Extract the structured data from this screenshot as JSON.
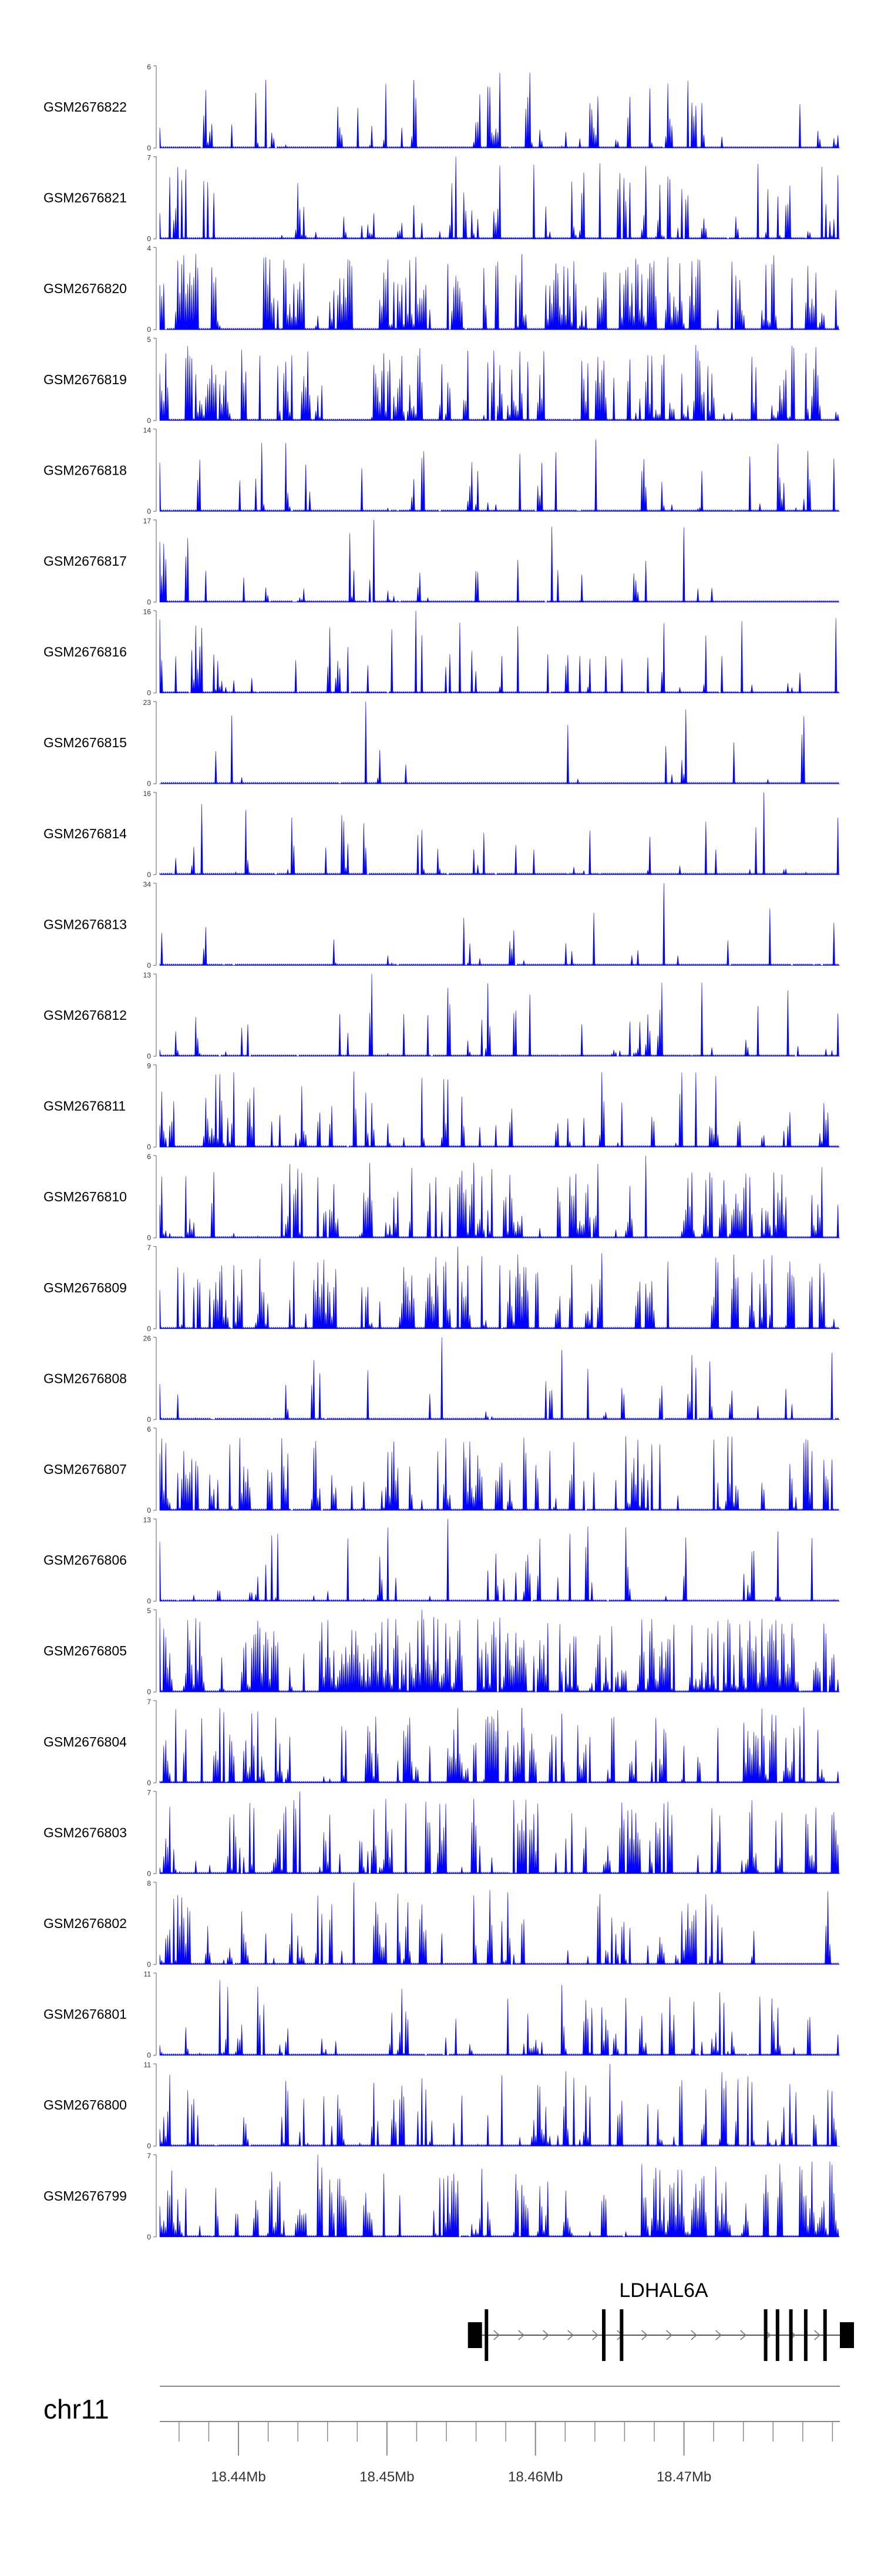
{
  "chart_data": {
    "type": "area",
    "title": "",
    "chromosome": "chr11",
    "xlim": [
      18.4347,
      18.4805
    ],
    "x_unit": "Mb",
    "x_ticks": [
      18.44,
      18.45,
      18.46,
      18.47
    ],
    "x_tick_labels": [
      "18.44Mb",
      "18.45Mb",
      "18.46Mb",
      "18.47Mb"
    ],
    "fill_color": "#0000ff",
    "gene": {
      "name": "LDHAL6A",
      "strand": "+",
      "start": 18.4564,
      "end": 18.4805,
      "exon_positions": [
        18.4567,
        18.4646,
        18.4658,
        18.4755,
        18.4763,
        18.4772,
        18.4782,
        18.4795
      ]
    },
    "tracks": [
      {
        "label": "GSM2676822",
        "ymax": 6,
        "ymax_label": "6",
        "ymin_label": "0",
        "seed": 101,
        "density": 0.62,
        "skew": 1.6
      },
      {
        "label": "GSM2676821",
        "ymax": 7,
        "ymax_label": "7",
        "ymin_label": "0",
        "seed": 102,
        "density": 0.6,
        "skew": 1.7
      },
      {
        "label": "GSM2676820",
        "ymax": 4,
        "ymax_label": "4",
        "ymin_label": "0",
        "seed": 103,
        "density": 0.88,
        "skew": 1.1
      },
      {
        "label": "GSM2676819",
        "ymax": 5,
        "ymax_label": "5",
        "ymin_label": "0",
        "seed": 104,
        "density": 0.8,
        "skew": 1.4
      },
      {
        "label": "GSM2676818",
        "ymax": 14,
        "ymax_label": "14",
        "ymin_label": "0",
        "seed": 105,
        "density": 0.5,
        "skew": 2.0
      },
      {
        "label": "GSM2676817",
        "ymax": 17,
        "ymax_label": "17",
        "ymin_label": "0",
        "seed": 106,
        "density": 0.42,
        "skew": 2.0
      },
      {
        "label": "GSM2676816",
        "ymax": 16,
        "ymax_label": "16",
        "ymin_label": "0",
        "seed": 107,
        "density": 0.52,
        "skew": 1.8
      },
      {
        "label": "GSM2676815",
        "ymax": 23,
        "ymax_label": "23",
        "ymin_label": "0",
        "seed": 108,
        "density": 0.3,
        "skew": 2.2
      },
      {
        "label": "GSM2676814",
        "ymax": 16,
        "ymax_label": "16",
        "ymin_label": "0",
        "seed": 109,
        "density": 0.42,
        "skew": 2.2
      },
      {
        "label": "GSM2676813",
        "ymax": 34,
        "ymax_label": "34",
        "ymin_label": "0",
        "seed": 110,
        "density": 0.28,
        "skew": 2.8
      },
      {
        "label": "GSM2676812",
        "ymax": 13,
        "ymax_label": "13",
        "ymin_label": "0",
        "seed": 111,
        "density": 0.45,
        "skew": 2.3
      },
      {
        "label": "GSM2676811",
        "ymax": 9,
        "ymax_label": "9",
        "ymin_label": "0",
        "seed": 112,
        "density": 0.7,
        "skew": 1.5
      },
      {
        "label": "GSM2676810",
        "ymax": 6,
        "ymax_label": "6",
        "ymin_label": "0",
        "seed": 113,
        "density": 0.78,
        "skew": 1.3
      },
      {
        "label": "GSM2676809",
        "ymax": 7,
        "ymax_label": "7",
        "ymin_label": "0",
        "seed": 114,
        "density": 0.78,
        "skew": 1.4
      },
      {
        "label": "GSM2676808",
        "ymax": 26,
        "ymax_label": "26",
        "ymin_label": "0",
        "seed": 115,
        "density": 0.45,
        "skew": 2.2
      },
      {
        "label": "GSM2676807",
        "ymax": 6,
        "ymax_label": "6",
        "ymin_label": "0",
        "seed": 116,
        "density": 0.82,
        "skew": 1.3
      },
      {
        "label": "GSM2676806",
        "ymax": 13,
        "ymax_label": "13",
        "ymin_label": "0",
        "seed": 117,
        "density": 0.55,
        "skew": 2.1
      },
      {
        "label": "GSM2676805",
        "ymax": 5,
        "ymax_label": "5",
        "ymin_label": "0",
        "seed": 118,
        "density": 0.9,
        "skew": 1.1
      },
      {
        "label": "GSM2676804",
        "ymax": 7,
        "ymax_label": "7",
        "ymin_label": "0",
        "seed": 119,
        "density": 0.8,
        "skew": 1.4
      },
      {
        "label": "GSM2676803",
        "ymax": 7,
        "ymax_label": "7",
        "ymin_label": "0",
        "seed": 120,
        "density": 0.8,
        "skew": 1.4
      },
      {
        "label": "GSM2676802",
        "ymax": 8,
        "ymax_label": "8",
        "ymin_label": "0",
        "seed": 121,
        "density": 0.72,
        "skew": 1.5
      },
      {
        "label": "GSM2676801",
        "ymax": 11,
        "ymax_label": "11",
        "ymin_label": "0",
        "seed": 122,
        "density": 0.66,
        "skew": 1.9
      },
      {
        "label": "GSM2676800",
        "ymax": 11,
        "ymax_label": "11",
        "ymin_label": "0",
        "seed": 123,
        "density": 0.7,
        "skew": 1.8
      },
      {
        "label": "GSM2676799",
        "ymax": 7,
        "ymax_label": "7",
        "ymin_label": "0",
        "seed": 124,
        "density": 0.82,
        "skew": 1.4
      }
    ]
  }
}
